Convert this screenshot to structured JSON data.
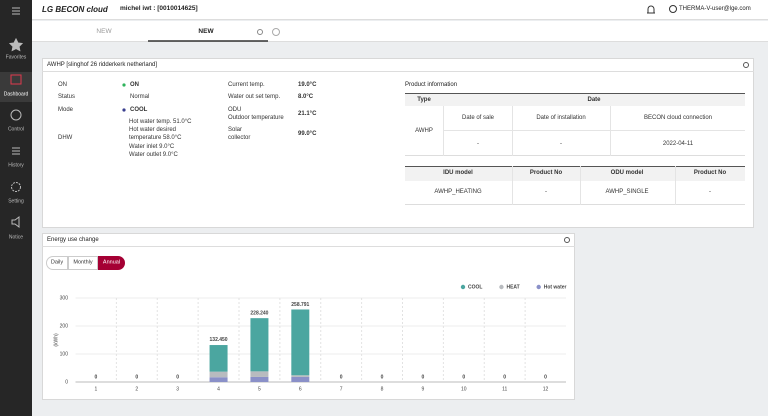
{
  "header": {
    "logo": "LG BECON cloud",
    "user": "michel iwt : [0010014625]",
    "account": "THERMA-V-user@lge.com"
  },
  "sidebar": [
    "Favorites",
    "Dashboard",
    "Control",
    "History",
    "Setting",
    "Notice"
  ],
  "tabs": [
    "NEW",
    "NEW"
  ],
  "device_panel": {
    "title": "AWHP [slinghof 26 ridderkerk netherland]",
    "status": [
      {
        "label": "ON",
        "value": "ON"
      },
      {
        "label": "Status",
        "value": "Normal"
      },
      {
        "label": "Mode",
        "value": "COOL"
      }
    ],
    "dhw": {
      "label": "DHW",
      "lines": [
        "Hot water temp. 51.0°C",
        "Hot water desired",
        "temperature 58.0°C",
        "Water inlet 9.0°C",
        "Water outlet 9.0°C"
      ]
    },
    "temps": [
      {
        "label": [
          "Current temp."
        ],
        "value": "19.0°C"
      },
      {
        "label": [
          "Water out set temp."
        ],
        "value": "8.0°C"
      },
      {
        "label": [
          "ODU",
          "Outdoor temperature"
        ],
        "value": "21.1°C"
      },
      {
        "label": [
          "Solar",
          "collector"
        ],
        "value": "99.0°C"
      }
    ],
    "product_info": {
      "title": "Product information",
      "table1": {
        "headers": [
          "Type",
          "Date"
        ],
        "type": "AWHP",
        "subheaders": [
          "Date of sale",
          "Date of installation",
          "BECON cloud connection"
        ],
        "values": [
          "-",
          "-",
          "2022-04-11"
        ]
      },
      "table2": {
        "headers": [
          "IDU model",
          "Product No",
          "ODU model",
          "Product No"
        ],
        "values": [
          "AWHP_HEATING",
          "-",
          "AWHP_SINGLE",
          "-"
        ]
      }
    }
  },
  "energy_panel": {
    "title": "Energy use change",
    "buttons": [
      "Daily",
      "Monthly",
      "Annual"
    ]
  },
  "chart_data": {
    "type": "bar",
    "stacked": true,
    "y_label": "(kWh)",
    "categories": [
      "1",
      "2",
      "3",
      "4",
      "5",
      "6",
      "7",
      "8",
      "9",
      "10",
      "11",
      "12"
    ],
    "series": [
      {
        "name": "COOL",
        "color": "#4ba6a0",
        "values": [
          0,
          0,
          0,
          95,
          190,
          235,
          0,
          0,
          0,
          0,
          0,
          0
        ]
      },
      {
        "name": "HEAT",
        "color": "#b8bbbf",
        "values": [
          0,
          0,
          0,
          20,
          20,
          6,
          0,
          0,
          0,
          0,
          0,
          0
        ]
      },
      {
        "name": "Hot water",
        "color": "#8a90c8",
        "values": [
          0,
          0,
          0,
          17,
          18,
          18,
          0,
          0,
          0,
          0,
          0,
          0
        ]
      }
    ],
    "totals": [
      0,
      0,
      0,
      132.45,
      228.24,
      258.791,
      0,
      0,
      0,
      0,
      0,
      0
    ],
    "total_labels": [
      "0",
      "0",
      "0",
      "132.450",
      "228.240",
      "258.791",
      "0",
      "0",
      "0",
      "0",
      "0",
      "0"
    ],
    "ylim": [
      0,
      300
    ],
    "yticks": [
      0,
      100,
      200,
      300
    ],
    "grid": true,
    "legend": "top-right"
  }
}
